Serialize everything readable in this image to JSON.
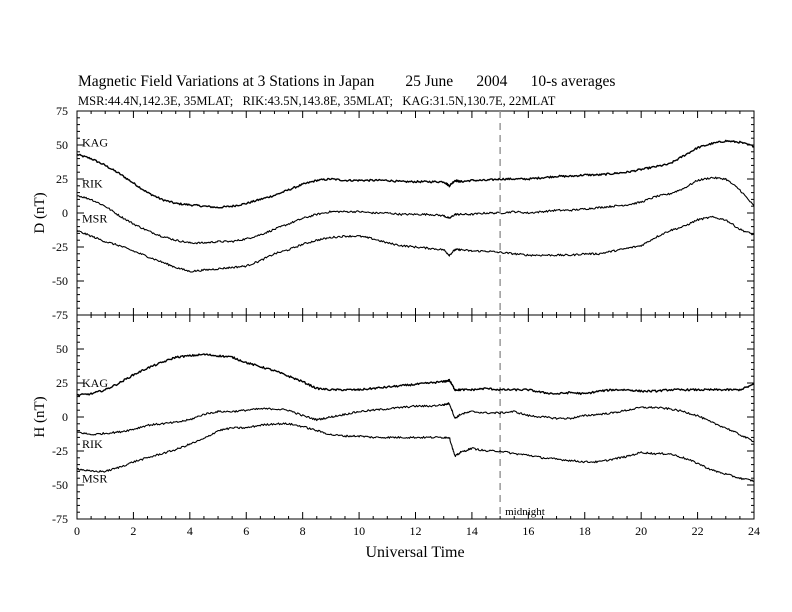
{
  "title": "Magnetic Field Variations at 3 Stations in Japan        25 June      2004      10-s averages",
  "subtitle": "MSR:44.4N,142.3E, 35MLAT;   RIK:43.5N,143.8E, 35MLAT;   KAG:31.5N,130.7E, 22MLAT",
  "chart_data": [
    {
      "type": "line",
      "ylabel": "D (nT)",
      "xlim": [
        0,
        24
      ],
      "ylim": [
        -75,
        75
      ],
      "yticks": [
        75,
        50,
        25,
        0,
        -25,
        -50,
        -75
      ],
      "series": [
        {
          "name": "KAG",
          "x": [
            0,
            0.5,
            1,
            1.5,
            2,
            2.5,
            3,
            3.5,
            4,
            4.5,
            5,
            5.5,
            6,
            6.5,
            7,
            7.5,
            8,
            8.5,
            9,
            9.5,
            10,
            10.5,
            11,
            11.5,
            12,
            12.5,
            13,
            13.2,
            13.4,
            13.6,
            14,
            14.5,
            15,
            15.5,
            16,
            16.5,
            17,
            17.5,
            18,
            18.5,
            19,
            19.5,
            20,
            20.5,
            21,
            21.5,
            22,
            22.5,
            23,
            23.5,
            24
          ],
          "y": [
            43,
            40,
            35,
            29,
            22,
            15,
            10,
            7,
            6,
            5,
            4,
            5,
            7,
            10,
            13,
            17,
            21,
            24,
            25,
            24,
            24,
            24,
            24,
            23,
            23,
            23,
            23,
            20,
            24,
            23,
            24,
            24,
            25,
            25,
            25,
            26,
            27,
            27,
            28,
            28,
            29,
            30,
            32,
            34,
            36,
            42,
            48,
            51,
            53,
            52,
            49
          ]
        },
        {
          "name": "RIK",
          "x": [
            0,
            0.5,
            1,
            1.5,
            2,
            2.5,
            3,
            3.5,
            4,
            4.5,
            5,
            5.5,
            6,
            6.5,
            7,
            7.5,
            8,
            8.5,
            9,
            9.5,
            10,
            10.5,
            11,
            11.5,
            12,
            12.5,
            13,
            13.2,
            13.4,
            13.6,
            14,
            14.5,
            15,
            15.5,
            16,
            16.5,
            17,
            17.5,
            18,
            18.5,
            19,
            19.5,
            20,
            20.5,
            21,
            21.5,
            22,
            22.5,
            23,
            23.5,
            24
          ],
          "y": [
            13,
            10,
            5,
            -2,
            -8,
            -13,
            -17,
            -20,
            -22,
            -22,
            -21,
            -21,
            -19,
            -16,
            -12,
            -8,
            -4,
            -1,
            1,
            1,
            1,
            0,
            0,
            -1,
            -1,
            -1,
            -2,
            -4,
            -1,
            -1,
            -1,
            0,
            0,
            1,
            0,
            1,
            2,
            2,
            3,
            4,
            5,
            6,
            8,
            12,
            14,
            18,
            24,
            26,
            25,
            17,
            5
          ]
        },
        {
          "name": "MSR",
          "x": [
            0,
            0.5,
            1,
            1.5,
            2,
            2.5,
            3,
            3.5,
            4,
            4.5,
            5,
            5.5,
            6,
            6.5,
            7,
            7.5,
            8,
            8.5,
            9,
            9.5,
            10,
            10.5,
            11,
            11.5,
            12,
            12.5,
            13,
            13.2,
            13.4,
            13.6,
            14,
            14.5,
            15,
            15.5,
            16,
            16.5,
            17,
            17.5,
            18,
            18.5,
            19,
            19.5,
            20,
            20.5,
            21,
            21.5,
            22,
            22.5,
            23,
            23.5,
            24
          ],
          "y": [
            -13,
            -17,
            -21,
            -24,
            -28,
            -32,
            -36,
            -40,
            -43,
            -42,
            -41,
            -40,
            -39,
            -35,
            -30,
            -27,
            -23,
            -20,
            -18,
            -17,
            -17,
            -19,
            -22,
            -24,
            -25,
            -26,
            -27,
            -31,
            -27,
            -27,
            -28,
            -28,
            -29,
            -30,
            -31,
            -31,
            -31,
            -31,
            -30,
            -30,
            -28,
            -26,
            -24,
            -18,
            -13,
            -10,
            -5,
            -3,
            -5,
            -12,
            -16
          ]
        }
      ]
    },
    {
      "type": "line",
      "ylabel": "H (nT)",
      "xlabel": "Universal Time",
      "xlim": [
        0,
        24
      ],
      "ylim": [
        -75,
        75
      ],
      "xticks": [
        0,
        2,
        4,
        6,
        8,
        10,
        12,
        14,
        16,
        18,
        20,
        22,
        24
      ],
      "xticklabels": [
        "0",
        "2",
        "4",
        "6",
        "8",
        "10",
        "12",
        "14",
        "16",
        "18",
        "20",
        "22",
        "24"
      ],
      "yticks": [
        50,
        25,
        0,
        -25,
        -50,
        -75
      ],
      "annotations": [
        {
          "text": "midnight",
          "x": 15,
          "style": "dashed vertical line"
        }
      ],
      "series": [
        {
          "name": "KAG",
          "x": [
            0,
            0.5,
            1,
            1.5,
            2,
            2.5,
            3,
            3.5,
            4,
            4.5,
            5,
            5.5,
            6,
            6.5,
            7,
            7.5,
            8,
            8.5,
            9,
            9.5,
            10,
            10.5,
            11,
            11.5,
            12,
            12.5,
            13,
            13.2,
            13.4,
            13.6,
            14,
            14.5,
            15,
            15.5,
            16,
            16.5,
            17,
            17.5,
            18,
            18.5,
            19,
            19.5,
            20,
            20.5,
            21,
            21.5,
            22,
            22.5,
            23,
            23.5,
            24
          ],
          "y": [
            16,
            17,
            20,
            25,
            31,
            36,
            40,
            44,
            45,
            46,
            45,
            44,
            40,
            37,
            34,
            30,
            26,
            21,
            20,
            20,
            20,
            21,
            22,
            23,
            24,
            25,
            26,
            27,
            20,
            20,
            20,
            21,
            20,
            20,
            20,
            18,
            17,
            18,
            17,
            19,
            20,
            20,
            19,
            19,
            20,
            20,
            20,
            20,
            20,
            20,
            24
          ]
        },
        {
          "name": "RIK",
          "x": [
            0,
            0.5,
            1,
            1.5,
            2,
            2.5,
            3,
            3.5,
            4,
            4.5,
            5,
            5.5,
            6,
            6.5,
            7,
            7.5,
            8,
            8.5,
            9,
            9.5,
            10,
            10.5,
            11,
            11.5,
            12,
            12.5,
            13,
            13.2,
            13.4,
            13.6,
            14,
            14.5,
            15,
            15.5,
            16,
            16.5,
            17,
            17.5,
            18,
            18.5,
            19,
            19.5,
            20,
            20.5,
            21,
            21.5,
            22,
            22.5,
            23,
            23.5,
            24
          ],
          "y": [
            -11,
            -13,
            -12,
            -11,
            -9,
            -6,
            -5,
            -4,
            -2,
            2,
            4,
            4,
            5,
            6,
            6,
            5,
            1,
            -2,
            0,
            2,
            4,
            5,
            6,
            7,
            8,
            8,
            9,
            10,
            -1,
            2,
            4,
            3,
            3,
            4,
            1,
            0,
            -1,
            -1,
            1,
            2,
            3,
            5,
            7,
            7,
            6,
            4,
            1,
            -4,
            -8,
            -13,
            -18
          ]
        },
        {
          "name": "MSR",
          "x": [
            0,
            0.5,
            1,
            1.5,
            2,
            2.5,
            3,
            3.5,
            4,
            4.5,
            5,
            5.5,
            6,
            6.5,
            7,
            7.5,
            8,
            8.5,
            9,
            9.5,
            10,
            10.5,
            11,
            11.5,
            12,
            12.5,
            13,
            13.2,
            13.4,
            13.6,
            14,
            14.5,
            15,
            15.5,
            16,
            16.5,
            17,
            17.5,
            18,
            18.5,
            19,
            19.5,
            20,
            20.5,
            21,
            21.5,
            22,
            22.5,
            23,
            23.5,
            24
          ],
          "y": [
            -38,
            -40,
            -40,
            -37,
            -33,
            -30,
            -27,
            -24,
            -20,
            -16,
            -10,
            -8,
            -8,
            -6,
            -5,
            -5,
            -7,
            -10,
            -13,
            -14,
            -14,
            -15,
            -15,
            -15,
            -15,
            -15,
            -15,
            -15,
            -29,
            -26,
            -23,
            -25,
            -25,
            -27,
            -28,
            -30,
            -31,
            -32,
            -33,
            -33,
            -31,
            -29,
            -26,
            -27,
            -27,
            -30,
            -34,
            -39,
            -42,
            -45,
            -47
          ]
        }
      ]
    }
  ]
}
